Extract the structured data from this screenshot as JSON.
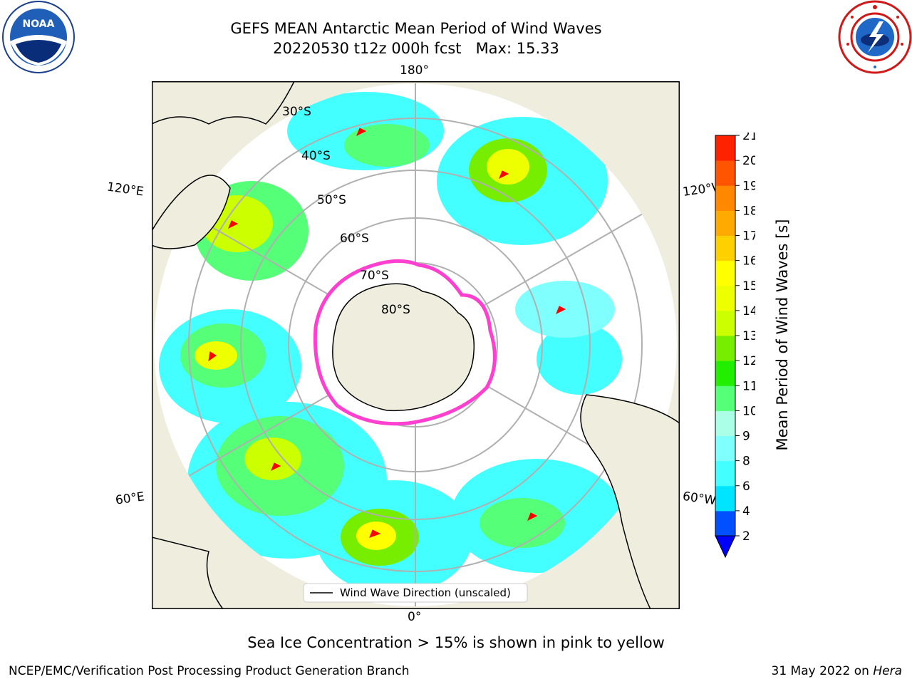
{
  "title": {
    "line1": "GEFS MEAN Antarctic Mean Period of Wind Waves",
    "line2": "20220530 t12z 000h fcst   Max: 15.33"
  },
  "logos": {
    "left": "noaa-logo",
    "left_text": "NOAA",
    "right": "national-weather-service-logo"
  },
  "map": {
    "projection": "south-polar-stereographic",
    "longitude_labels": {
      "top": "180°",
      "bottom": "0°",
      "upper_left": "120°E",
      "upper_right": "120°W",
      "lower_left": "60°E",
      "lower_right": "60°W"
    },
    "latitude_labels": [
      "30°S",
      "40°S",
      "50°S",
      "60°S",
      "70°S",
      "80°S"
    ],
    "legend": "Wind Wave Direction (unscaled)",
    "colors": {
      "land": "#efedde",
      "ocean_missing": "#ffffff",
      "coastline": "#000000",
      "grid": "#b0b0b0",
      "arrow": "#ff0000",
      "sea_ice_edge": "#ff3fd0"
    }
  },
  "colorbar": {
    "label": "Mean Period of Wind Waves [s]",
    "ticks": [
      "2",
      "4",
      "6",
      "8",
      "9",
      "10",
      "11",
      "12",
      "13",
      "14",
      "15",
      "16",
      "17",
      "18",
      "19",
      "20",
      "21"
    ],
    "colors": [
      "#0050ff",
      "#00e5ff",
      "#44ffff",
      "#80ffff",
      "#aaffe6",
      "#55ff77",
      "#22ee00",
      "#77ee00",
      "#ccff00",
      "#eeff00",
      "#ffff00",
      "#ffd000",
      "#ffaa00",
      "#ff8800",
      "#ff5500",
      "#ff2200"
    ],
    "under_color": "#0000ff"
  },
  "footnote": "Sea Ice Concentration > 15% is shown in pink to yellow",
  "footer": {
    "branch": "NCEP/EMC/Verification Post Processing Product Generation Branch",
    "date": "31 May 2022 on",
    "machine": "Hera"
  }
}
